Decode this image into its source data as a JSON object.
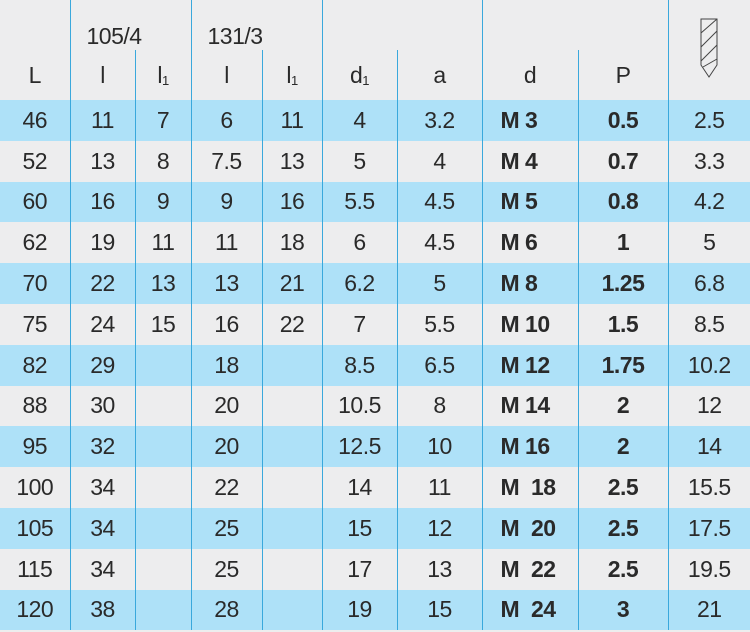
{
  "header": {
    "group1": "105/4",
    "group2": "131/3",
    "columns": [
      "L",
      "l",
      "l1",
      "l",
      "l1",
      "d1",
      "a",
      "d",
      "P"
    ],
    "icon": "drill-bit-icon"
  },
  "rows": [
    [
      "46",
      "11",
      "7",
      "6",
      "11",
      "4",
      "3.2",
      "M 3",
      "0.5",
      "2.5"
    ],
    [
      "52",
      "13",
      "8",
      "7.5",
      "13",
      "5",
      "4",
      "M 4",
      "0.7",
      "3.3"
    ],
    [
      "60",
      "16",
      "9",
      "9",
      "16",
      "5.5",
      "4.5",
      "M 5",
      "0.8",
      "4.2"
    ],
    [
      "62",
      "19",
      "11",
      "11",
      "18",
      "6",
      "4.5",
      "M 6",
      "1",
      "5"
    ],
    [
      "70",
      "22",
      "13",
      "13",
      "21",
      "6.2",
      "5",
      "M 8",
      "1.25",
      "6.8"
    ],
    [
      "75",
      "24",
      "15",
      "16",
      "22",
      "7",
      "5.5",
      "M 10",
      "1.5",
      "8.5"
    ],
    [
      "82",
      "29",
      "",
      "18",
      "",
      "8.5",
      "6.5",
      "M 12",
      "1.75",
      "10.2"
    ],
    [
      "88",
      "30",
      "",
      "20",
      "",
      "10.5",
      "8",
      "M 14",
      "2",
      "12"
    ],
    [
      "95",
      "32",
      "",
      "20",
      "",
      "12.5",
      "10",
      "M 16",
      "2",
      "14"
    ],
    [
      "100",
      "34",
      "",
      "22",
      "",
      "14",
      "11",
      "M  18",
      "2.5",
      "15.5"
    ],
    [
      "105",
      "34",
      "",
      "25",
      "",
      "15",
      "12",
      "M  20",
      "2.5",
      "17.5"
    ],
    [
      "115",
      "34",
      "",
      "25",
      "",
      "17",
      "13",
      "M  22",
      "2.5",
      "19.5"
    ],
    [
      "120",
      "38",
      "",
      "28",
      "",
      "19",
      "15",
      "M  24",
      "3",
      "21"
    ]
  ],
  "colors": {
    "row_blue": "#aee1f8",
    "row_gray": "#ededee",
    "divider": "#3aa8dc"
  }
}
